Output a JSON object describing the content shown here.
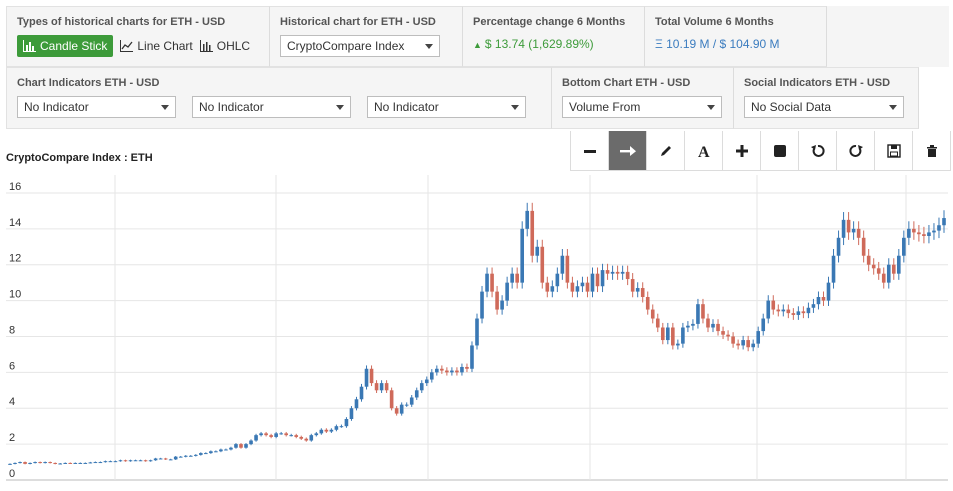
{
  "header": {
    "types_title": "Types of historical charts for ETH - USD",
    "candle_label": "Candle Stick",
    "line_label": "Line Chart",
    "ohlc_label": "OHLC",
    "historical_title": "Historical chart for ETH - USD",
    "historical_value": "CryptoCompare Index",
    "pct_title": "Percentage change 6 Months",
    "pct_value": "$ 13.74 (1,629.89%)",
    "volume_title": "Total Volume 6 Months",
    "volume_value": "Ξ 10.19 M / $ 104.90 M"
  },
  "indicators": {
    "chart_title": "Chart Indicators ETH - USD",
    "ind1": "No Indicator",
    "ind2": "No Indicator",
    "ind3": "No Indicator",
    "bottom_title": "Bottom Chart ETH - USD",
    "bottom_value": "Volume From",
    "social_title": "Social Indicators ETH - USD",
    "social_value": "No Social Data"
  },
  "toolbar": {
    "icons": [
      "minus-icon",
      "arrow-right-icon",
      "pencil-icon",
      "text-icon",
      "plus-icon",
      "square-icon",
      "undo-icon",
      "redo-icon",
      "save-icon",
      "trash-icon"
    ],
    "active": "arrow-right-icon"
  },
  "colors": {
    "up": "#3a78b4",
    "down": "#cf6a5a",
    "accent_green": "#3d9b3a"
  },
  "chart_data": {
    "type": "candlestick",
    "title": "CryptoCompare Index : ETH",
    "ylim": [
      0,
      17
    ],
    "yticks": [
      "0",
      "2",
      "4",
      "6",
      "8",
      "10",
      "12",
      "14",
      "16"
    ],
    "grid": true,
    "series_close": [
      0.9,
      0.95,
      1.0,
      0.9,
      0.95,
      1.0,
      0.95,
      1.0,
      0.95,
      0.9,
      0.92,
      0.95,
      0.93,
      0.95,
      0.95,
      0.95,
      0.98,
      1.0,
      1.0,
      1.05,
      1.05,
      1.05,
      1.1,
      1.05,
      1.1,
      1.1,
      1.1,
      1.05,
      1.1,
      1.2,
      1.2,
      1.15,
      1.15,
      1.3,
      1.3,
      1.35,
      1.35,
      1.4,
      1.5,
      1.5,
      1.6,
      1.6,
      1.7,
      1.7,
      1.8,
      2.0,
      1.8,
      2.0,
      2.2,
      2.5,
      2.6,
      2.5,
      2.4,
      2.6,
      2.6,
      2.5,
      2.5,
      2.4,
      2.3,
      2.2,
      2.5,
      2.6,
      2.8,
      2.7,
      2.8,
      3.0,
      3.0,
      3.4,
      4.0,
      4.5,
      5.2,
      6.2,
      5.4,
      5.0,
      5.4,
      5.0,
      4.0,
      3.7,
      4.2,
      4.2,
      4.6,
      5.0,
      5.4,
      5.6,
      6.0,
      6.2,
      6.1,
      6.0,
      6.1,
      6.0,
      6.3,
      6.2,
      7.5,
      9.0,
      10.5,
      11.5,
      10.5,
      9.5,
      10.0,
      11.0,
      11.5,
      11.0,
      14.0,
      15.0,
      12.5,
      13.0,
      11.0,
      10.5,
      10.8,
      11.5,
      12.5,
      11.0,
      10.5,
      10.8,
      11.0,
      10.5,
      11.5,
      10.8,
      11.7,
      11.5,
      11.6,
      11.5,
      11.6,
      11.2,
      10.5,
      10.7,
      10.2,
      9.5,
      9.0,
      8.5,
      7.8,
      8.5,
      7.5,
      7.6,
      8.5,
      8.6,
      8.7,
      9.8,
      9.0,
      8.5,
      8.7,
      8.3,
      8.1,
      8.0,
      7.6,
      7.5,
      7.8,
      7.4,
      7.6,
      8.3,
      9.0,
      10.0,
      9.5,
      9.4,
      9.5,
      9.3,
      9.2,
      9.4,
      9.3,
      9.6,
      9.8,
      10.2,
      10.0,
      11.0,
      12.5,
      13.5,
      14.5,
      13.8,
      14.0,
      13.5,
      12.5,
      12.0,
      11.8,
      11.5,
      11.0,
      12.0,
      11.5,
      12.5,
      13.5,
      14.0,
      13.8,
      13.7,
      13.6,
      13.8,
      13.9,
      14.2,
      14.6
    ]
  }
}
